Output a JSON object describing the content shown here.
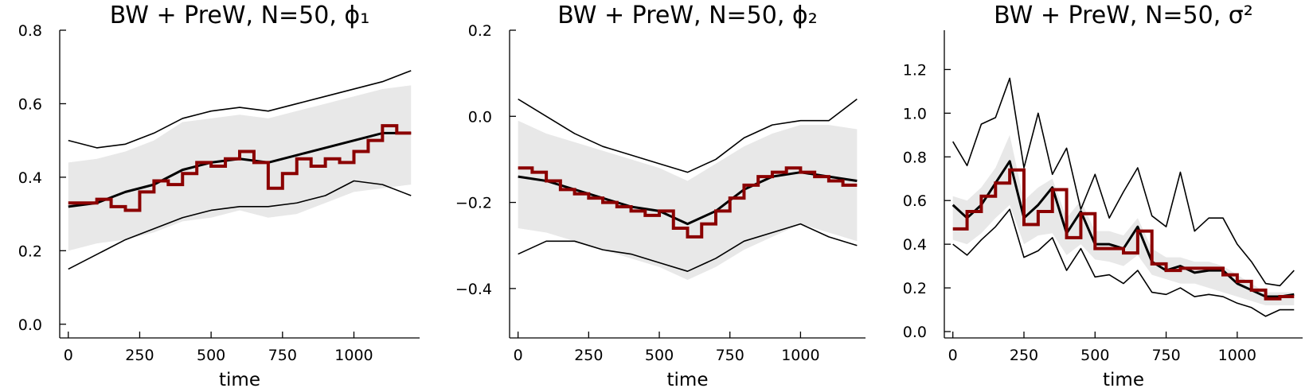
{
  "colors": {
    "band": "#e8e8e8",
    "mean": "#000000",
    "bounds": "#000000",
    "estimate": "#8b0000"
  },
  "chart_data": [
    {
      "type": "line",
      "title": "BW + PreW, N=50, ϕ₁",
      "xlabel": "time",
      "ylabel": "",
      "xlim": [
        -30,
        1230
      ],
      "ylim": [
        -0.02,
        0.8
      ],
      "xticks": [
        0,
        250,
        500,
        750,
        1000
      ],
      "yticks": [
        0.0,
        0.2,
        0.4,
        0.6,
        0.8
      ],
      "ytick_labels": [
        "0.0",
        "0.2",
        "0.4",
        "0.6",
        "0.8"
      ],
      "x": [
        0,
        100,
        200,
        300,
        400,
        500,
        600,
        700,
        800,
        900,
        1000,
        1100,
        1200
      ],
      "band_lower": [
        0.2,
        0.22,
        0.23,
        0.25,
        0.28,
        0.29,
        0.31,
        0.29,
        0.3,
        0.33,
        0.36,
        0.37,
        0.38
      ],
      "band_upper": [
        0.44,
        0.45,
        0.47,
        0.5,
        0.55,
        0.56,
        0.57,
        0.56,
        0.58,
        0.6,
        0.62,
        0.64,
        0.65
      ],
      "mean": [
        0.32,
        0.33,
        0.36,
        0.38,
        0.42,
        0.44,
        0.45,
        0.44,
        0.46,
        0.48,
        0.5,
        0.52,
        0.52
      ],
      "upper": [
        0.5,
        0.48,
        0.49,
        0.52,
        0.56,
        0.58,
        0.59,
        0.58,
        0.6,
        0.62,
        0.64,
        0.66,
        0.69
      ],
      "lower": [
        0.15,
        0.19,
        0.23,
        0.26,
        0.29,
        0.31,
        0.32,
        0.32,
        0.33,
        0.35,
        0.39,
        0.38,
        0.35
      ],
      "estimate_x": [
        0,
        50,
        100,
        150,
        200,
        250,
        300,
        350,
        400,
        450,
        500,
        550,
        600,
        650,
        700,
        750,
        800,
        850,
        900,
        950,
        1000,
        1050,
        1100,
        1150,
        1200
      ],
      "estimate_y": [
        0.33,
        0.33,
        0.34,
        0.32,
        0.31,
        0.36,
        0.39,
        0.38,
        0.41,
        0.44,
        0.43,
        0.45,
        0.47,
        0.44,
        0.37,
        0.41,
        0.45,
        0.43,
        0.45,
        0.44,
        0.47,
        0.5,
        0.54,
        0.52,
        0.52
      ]
    },
    {
      "type": "line",
      "title": "BW + PreW, N=50, ϕ₂",
      "xlabel": "time",
      "ylabel": "",
      "xlim": [
        -30,
        1230
      ],
      "ylim": [
        -0.5,
        0.2
      ],
      "xticks": [
        0,
        250,
        500,
        750,
        1000
      ],
      "yticks": [
        -0.4,
        -0.2,
        0.0,
        0.2
      ],
      "ytick_labels": [
        "−0.4",
        "−0.2",
        "0.0",
        "0.2"
      ],
      "x": [
        0,
        100,
        200,
        300,
        400,
        500,
        600,
        700,
        800,
        900,
        1000,
        1100,
        1200
      ],
      "band_lower": [
        -0.26,
        -0.27,
        -0.29,
        -0.31,
        -0.33,
        -0.35,
        -0.38,
        -0.35,
        -0.31,
        -0.28,
        -0.25,
        -0.27,
        -0.29
      ],
      "band_upper": [
        -0.01,
        -0.04,
        -0.06,
        -0.08,
        -0.1,
        -0.12,
        -0.15,
        -0.11,
        -0.07,
        -0.04,
        -0.02,
        -0.02,
        -0.03
      ],
      "mean": [
        -0.14,
        -0.15,
        -0.17,
        -0.19,
        -0.21,
        -0.22,
        -0.25,
        -0.22,
        -0.17,
        -0.14,
        -0.13,
        -0.14,
        -0.15
      ],
      "upper": [
        0.04,
        0.0,
        -0.04,
        -0.07,
        -0.09,
        -0.11,
        -0.13,
        -0.1,
        -0.05,
        -0.02,
        -0.01,
        -0.01,
        0.04
      ],
      "lower": [
        -0.32,
        -0.29,
        -0.29,
        -0.31,
        -0.32,
        -0.34,
        -0.36,
        -0.33,
        -0.29,
        -0.27,
        -0.25,
        -0.28,
        -0.3
      ],
      "estimate_x": [
        0,
        50,
        100,
        150,
        200,
        250,
        300,
        350,
        400,
        450,
        500,
        550,
        600,
        650,
        700,
        750,
        800,
        850,
        900,
        950,
        1000,
        1050,
        1100,
        1150,
        1200
      ],
      "estimate_y": [
        -0.12,
        -0.13,
        -0.15,
        -0.17,
        -0.18,
        -0.19,
        -0.2,
        -0.21,
        -0.22,
        -0.23,
        -0.22,
        -0.26,
        -0.28,
        -0.25,
        -0.22,
        -0.19,
        -0.16,
        -0.14,
        -0.13,
        -0.12,
        -0.13,
        -0.14,
        -0.15,
        -0.16,
        -0.16
      ]
    },
    {
      "type": "line",
      "title": "BW + PreW, N=50, σ²",
      "xlabel": "time",
      "ylabel": "",
      "xlim": [
        -30,
        1230
      ],
      "ylim": [
        0.0,
        1.38
      ],
      "xticks": [
        0,
        250,
        500,
        750,
        1000
      ],
      "yticks": [
        0.0,
        0.2,
        0.4,
        0.6,
        0.8,
        1.0,
        1.2
      ],
      "ytick_labels": [
        "0.0",
        "0.2",
        "0.4",
        "0.6",
        "0.8",
        "1.0",
        "1.2"
      ],
      "x": [
        0,
        50,
        100,
        150,
        200,
        250,
        300,
        350,
        400,
        450,
        500,
        550,
        600,
        650,
        700,
        750,
        800,
        850,
        900,
        950,
        1000,
        1050,
        1100,
        1150,
        1200
      ],
      "band_lower": [
        0.42,
        0.4,
        0.45,
        0.52,
        0.58,
        0.4,
        0.44,
        0.45,
        0.35,
        0.4,
        0.33,
        0.32,
        0.3,
        0.35,
        0.26,
        0.24,
        0.22,
        0.22,
        0.2,
        0.18,
        0.16,
        0.14,
        0.12,
        0.12,
        0.12
      ],
      "band_upper": [
        0.62,
        0.6,
        0.66,
        0.75,
        0.9,
        0.6,
        0.66,
        0.7,
        0.52,
        0.6,
        0.46,
        0.46,
        0.44,
        0.52,
        0.38,
        0.34,
        0.34,
        0.32,
        0.32,
        0.3,
        0.26,
        0.22,
        0.18,
        0.18,
        0.18
      ],
      "mean": [
        0.58,
        0.52,
        0.58,
        0.68,
        0.78,
        0.52,
        0.58,
        0.66,
        0.45,
        0.55,
        0.4,
        0.4,
        0.38,
        0.48,
        0.32,
        0.28,
        0.3,
        0.27,
        0.28,
        0.28,
        0.22,
        0.19,
        0.16,
        0.16,
        0.17
      ],
      "upper": [
        0.87,
        0.76,
        0.95,
        0.98,
        1.16,
        0.75,
        1.0,
        0.72,
        0.84,
        0.56,
        0.72,
        0.52,
        0.64,
        0.75,
        0.53,
        0.48,
        0.73,
        0.46,
        0.52,
        0.52,
        0.4,
        0.32,
        0.22,
        0.21,
        0.28
      ],
      "lower": [
        0.4,
        0.35,
        0.42,
        0.48,
        0.56,
        0.34,
        0.37,
        0.43,
        0.28,
        0.38,
        0.25,
        0.26,
        0.22,
        0.28,
        0.18,
        0.17,
        0.2,
        0.16,
        0.17,
        0.16,
        0.13,
        0.11,
        0.07,
        0.1,
        0.1
      ],
      "estimate_x": [
        0,
        50,
        100,
        150,
        200,
        250,
        300,
        350,
        400,
        450,
        500,
        550,
        600,
        650,
        700,
        750,
        800,
        850,
        900,
        950,
        1000,
        1050,
        1100,
        1150,
        1200
      ],
      "estimate_y": [
        0.47,
        0.55,
        0.62,
        0.68,
        0.74,
        0.49,
        0.55,
        0.65,
        0.43,
        0.54,
        0.38,
        0.38,
        0.36,
        0.46,
        0.31,
        0.28,
        0.29,
        0.29,
        0.29,
        0.26,
        0.23,
        0.19,
        0.15,
        0.16,
        0.16
      ]
    }
  ]
}
